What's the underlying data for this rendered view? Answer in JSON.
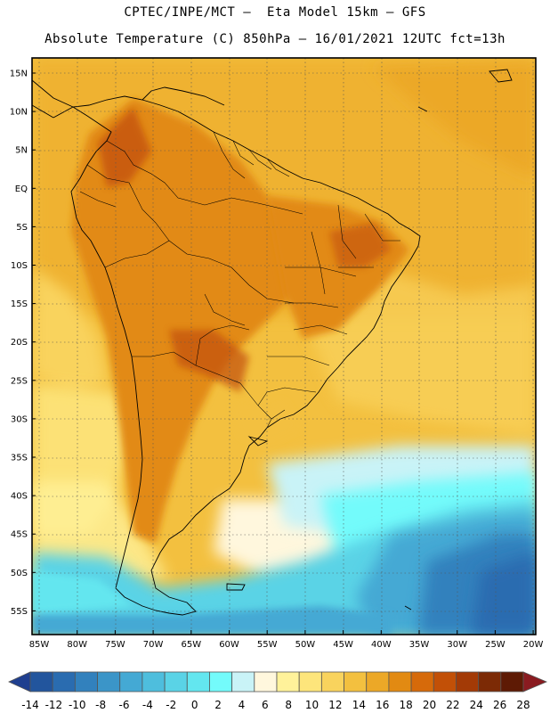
{
  "header": {
    "line1": "CPTEC/INPE/MCT –  Eta Model 15km – GFS",
    "line2": "Absolute Temperature (C) 850hPa – 16/01/2021 12UTC fct=13h"
  },
  "map": {
    "lat_ticks": [
      "15N",
      "10N",
      "5N",
      "EQ",
      "5S",
      "10S",
      "15S",
      "20S",
      "25S",
      "30S",
      "35S",
      "40S",
      "45S",
      "50S",
      "55S"
    ],
    "lon_ticks": [
      "85W",
      "80W",
      "75W",
      "70W",
      "65W",
      "60W",
      "55W",
      "50W",
      "45W",
      "40W",
      "35W",
      "30W",
      "25W",
      "20W"
    ],
    "grid": "dotted"
  },
  "colorbar": {
    "labels": [
      "-14",
      "-12",
      "-10",
      "-8",
      "-6",
      "-4",
      "-2",
      "0",
      "2",
      "4",
      "6",
      "8",
      "10",
      "12",
      "14",
      "16",
      "18",
      "20",
      "22",
      "24",
      "26",
      "28"
    ],
    "colors": [
      "#1f3f8f",
      "#22559d",
      "#2a6cb0",
      "#3281bd",
      "#3b95c8",
      "#44a9d4",
      "#4ebedd",
      "#5ad3e6",
      "#63e6ef",
      "#73fbfb",
      "#c9f3f7",
      "#fff7dd",
      "#fff29a",
      "#fde57b",
      "#f9d35d",
      "#f3c03f",
      "#eca827",
      "#e28a12",
      "#d66a0a",
      "#c25007",
      "#a33a06",
      "#7c2a05",
      "#5e1a04",
      "#8a1b20"
    ]
  },
  "colors": {
    "frame": "#000000",
    "coastline": "#000000"
  }
}
